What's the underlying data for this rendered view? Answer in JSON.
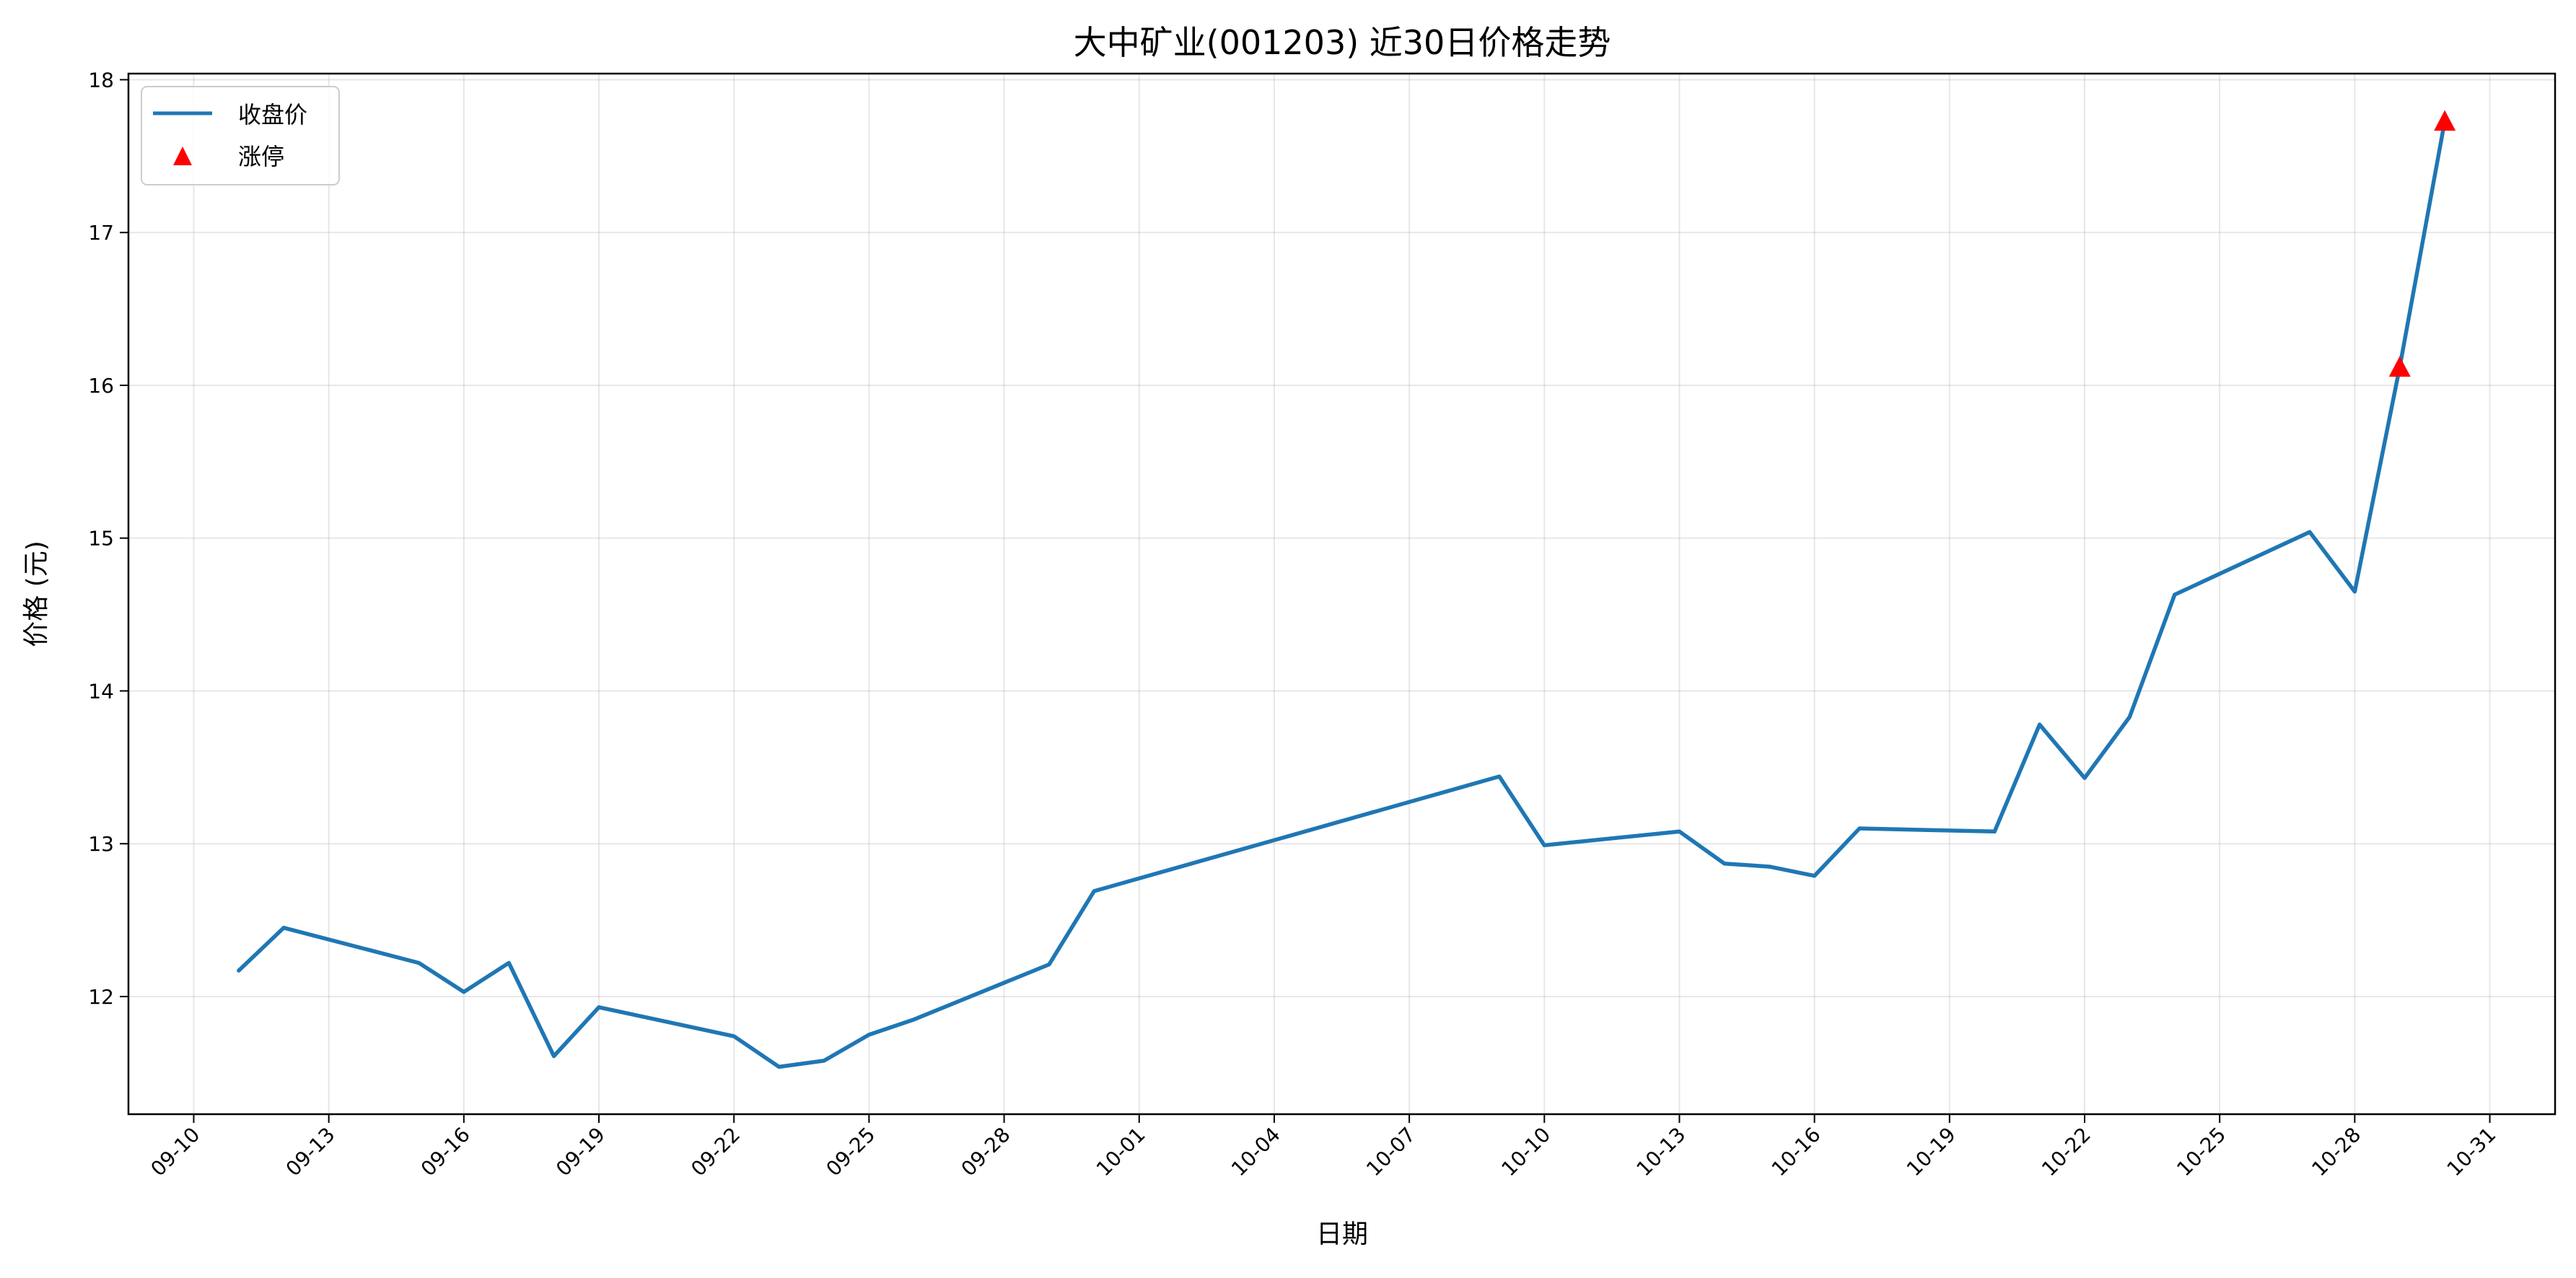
{
  "chart_data": {
    "type": "line",
    "title": "大中矿业(001203) 近30日价格走势",
    "xlabel": "日期",
    "ylabel": "价格 (元)",
    "year": null,
    "x": [
      "09-11",
      "09-12",
      "09-15",
      "09-16",
      "09-17",
      "09-18",
      "09-19",
      "09-22",
      "09-23",
      "09-24",
      "09-25",
      "09-26",
      "09-29",
      "09-30",
      "10-09",
      "10-10",
      "10-13",
      "10-14",
      "10-15",
      "10-16",
      "10-17",
      "10-20",
      "10-21",
      "10-22",
      "10-23",
      "10-24",
      "10-27",
      "10-28",
      "10-29",
      "10-30"
    ],
    "series": [
      {
        "name": "收盘价",
        "color": "#1f77b4",
        "values": [
          12.17,
          12.45,
          12.22,
          12.03,
          12.22,
          11.61,
          11.93,
          11.74,
          11.54,
          11.58,
          11.75,
          11.85,
          12.21,
          12.69,
          13.44,
          12.99,
          13.08,
          12.87,
          12.85,
          12.79,
          13.1,
          13.08,
          13.78,
          13.43,
          13.83,
          14.63,
          15.04,
          14.65,
          16.12,
          17.73
        ]
      },
      {
        "name": "涨停",
        "type": "scatter",
        "marker": "triangle-up",
        "color": "#ff0000",
        "x": [
          "10-29",
          "10-30"
        ],
        "values": [
          16.12,
          17.73
        ]
      }
    ],
    "xticks": [
      "09-10",
      "09-13",
      "09-16",
      "09-19",
      "09-22",
      "09-25",
      "09-28",
      "10-01",
      "10-04",
      "10-07",
      "10-10",
      "10-13",
      "10-16",
      "10-19",
      "10-22",
      "10-25",
      "10-28",
      "10-31"
    ],
    "yticks": [
      12,
      13,
      14,
      15,
      16,
      17,
      18
    ],
    "ylim": [
      11.23,
      18.04
    ],
    "grid": true,
    "legend_position": "top-left"
  }
}
